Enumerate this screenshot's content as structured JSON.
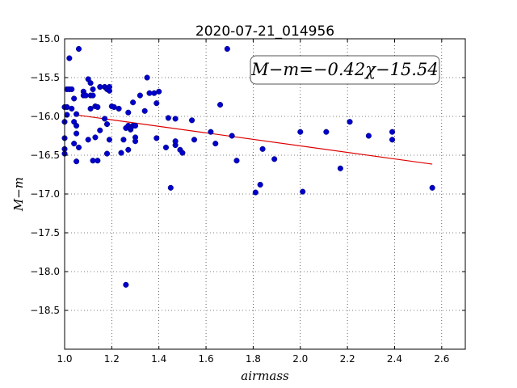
{
  "chart_data": {
    "type": "scatter",
    "title": "2020-07-21_014956",
    "xlabel": "airmass",
    "ylabel": "M−m",
    "xlim": [
      1.0,
      2.7
    ],
    "ylim": [
      -15.0,
      -19.0
    ],
    "y_inverted": true,
    "x_ticks": [
      1.0,
      1.2,
      1.4,
      1.6,
      1.8,
      2.0,
      2.2,
      2.4,
      2.6
    ],
    "x_tick_labels": [
      "1.0",
      "1.2",
      "1.4",
      "1.6",
      "1.8",
      "2.0",
      "2.2",
      "2.4",
      "2.6"
    ],
    "y_ticks": [
      -15.0,
      -15.5,
      -16.0,
      -16.5,
      -17.0,
      -17.5,
      -18.0,
      -18.5
    ],
    "y_tick_labels": [
      "−15.0",
      "−15.5",
      "−16.0",
      "−16.5",
      "−17.0",
      "−17.5",
      "−18.0",
      "−18.5"
    ],
    "grid": true,
    "annotation": "M−m=−0.42χ−15.54",
    "colors": {
      "points": "#0000cc",
      "fit_line": "#dd0000"
    },
    "series": [
      {
        "kind": "points",
        "points": [
          [
            1.0,
            -15.88
          ],
          [
            1.0,
            -16.28
          ],
          [
            1.0,
            -16.42
          ],
          [
            1.0,
            -16.48
          ],
          [
            1.0,
            -16.07
          ],
          [
            1.01,
            -15.65
          ],
          [
            1.01,
            -15.88
          ],
          [
            1.01,
            -15.98
          ],
          [
            1.02,
            -15.25
          ],
          [
            1.02,
            -15.65
          ],
          [
            1.03,
            -15.65
          ],
          [
            1.03,
            -15.9
          ],
          [
            1.04,
            -15.77
          ],
          [
            1.04,
            -16.07
          ],
          [
            1.04,
            -16.35
          ],
          [
            1.05,
            -15.97
          ],
          [
            1.05,
            -16.12
          ],
          [
            1.05,
            -16.22
          ],
          [
            1.05,
            -16.58
          ],
          [
            1.06,
            -15.13
          ],
          [
            1.06,
            -16.4
          ],
          [
            1.08,
            -15.68
          ],
          [
            1.08,
            -15.73
          ],
          [
            1.09,
            -15.73
          ],
          [
            1.1,
            -15.52
          ],
          [
            1.1,
            -16.3
          ],
          [
            1.11,
            -15.57
          ],
          [
            1.11,
            -15.73
          ],
          [
            1.11,
            -15.9
          ],
          [
            1.12,
            -15.65
          ],
          [
            1.12,
            -15.73
          ],
          [
            1.12,
            -16.57
          ],
          [
            1.13,
            -15.87
          ],
          [
            1.13,
            -16.27
          ],
          [
            1.14,
            -15.88
          ],
          [
            1.14,
            -16.57
          ],
          [
            1.15,
            -15.62
          ],
          [
            1.15,
            -16.18
          ],
          [
            1.17,
            -15.62
          ],
          [
            1.17,
            -16.03
          ],
          [
            1.18,
            -16.1
          ],
          [
            1.18,
            -15.65
          ],
          [
            1.18,
            -16.48
          ],
          [
            1.19,
            -15.62
          ],
          [
            1.19,
            -15.67
          ],
          [
            1.19,
            -16.3
          ],
          [
            1.2,
            -15.87
          ],
          [
            1.21,
            -15.88
          ],
          [
            1.23,
            -15.9
          ],
          [
            1.24,
            -16.47
          ],
          [
            1.25,
            -16.3
          ],
          [
            1.26,
            -16.15
          ],
          [
            1.26,
            -18.17
          ],
          [
            1.27,
            -15.95
          ],
          [
            1.27,
            -16.12
          ],
          [
            1.27,
            -16.43
          ],
          [
            1.28,
            -16.17
          ],
          [
            1.28,
            -16.15
          ],
          [
            1.29,
            -15.82
          ],
          [
            1.29,
            -16.12
          ],
          [
            1.3,
            -16.12
          ],
          [
            1.3,
            -16.27
          ],
          [
            1.3,
            -16.32
          ],
          [
            1.32,
            -15.73
          ],
          [
            1.34,
            -15.93
          ],
          [
            1.35,
            -15.5
          ],
          [
            1.36,
            -15.7
          ],
          [
            1.38,
            -15.7
          ],
          [
            1.39,
            -15.83
          ],
          [
            1.39,
            -16.28
          ],
          [
            1.4,
            -15.68
          ],
          [
            1.43,
            -16.4
          ],
          [
            1.44,
            -16.02
          ],
          [
            1.45,
            -16.92
          ],
          [
            1.47,
            -16.37
          ],
          [
            1.47,
            -16.32
          ],
          [
            1.47,
            -16.03
          ],
          [
            1.49,
            -16.43
          ],
          [
            1.5,
            -16.47
          ],
          [
            1.54,
            -16.05
          ],
          [
            1.55,
            -16.3
          ],
          [
            1.62,
            -16.2
          ],
          [
            1.64,
            -16.35
          ],
          [
            1.66,
            -15.85
          ],
          [
            1.69,
            -15.13
          ],
          [
            1.71,
            -16.25
          ],
          [
            1.73,
            -16.57
          ],
          [
            1.81,
            -16.98
          ],
          [
            1.83,
            -16.88
          ],
          [
            1.84,
            -16.42
          ],
          [
            1.89,
            -16.55
          ],
          [
            2.0,
            -16.2
          ],
          [
            2.01,
            -16.97
          ],
          [
            2.11,
            -16.2
          ],
          [
            2.17,
            -16.67
          ],
          [
            2.21,
            -16.07
          ],
          [
            2.29,
            -16.25
          ],
          [
            2.39,
            -16.2
          ],
          [
            2.39,
            -16.3
          ],
          [
            2.56,
            -16.92
          ]
        ]
      },
      {
        "kind": "fit",
        "slope": -0.42,
        "intercept": -15.54,
        "x_range": [
          1.05,
          2.56
        ]
      }
    ]
  }
}
